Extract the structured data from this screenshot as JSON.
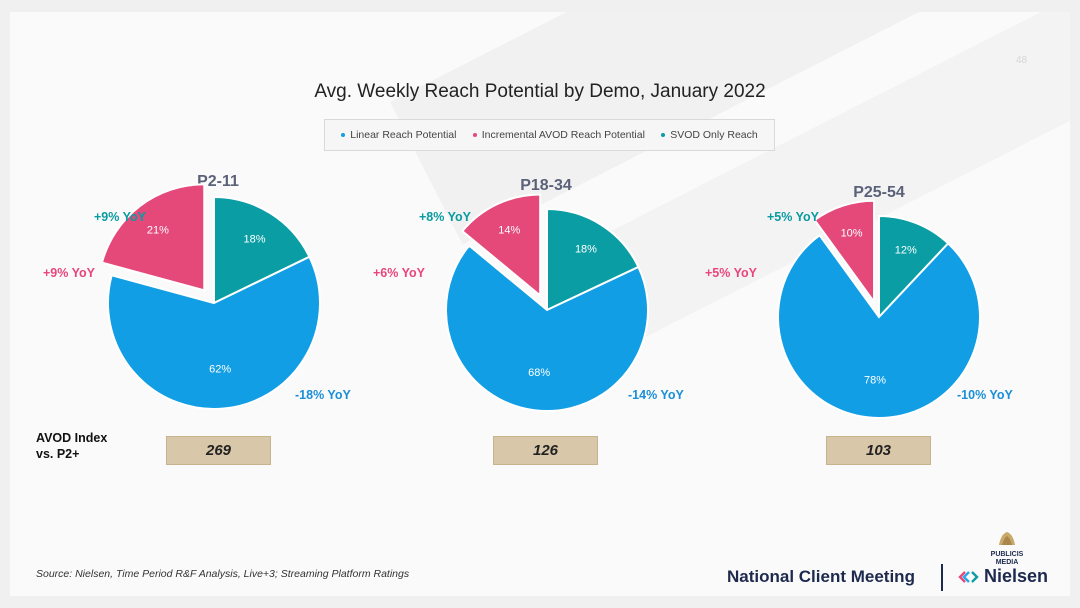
{
  "page_number": "48",
  "title": "Avg. Weekly Reach Potential by Demo, January 2022",
  "legend": [
    {
      "label": "Linear Reach Potential",
      "color": "#119ee4"
    },
    {
      "label": "Incremental AVOD Reach Potential",
      "color": "#e4497a"
    },
    {
      "label": "SVOD Only Reach",
      "color": "#0a9ea4"
    }
  ],
  "chart_data": [
    {
      "type": "pie",
      "title": "P2-11",
      "slices": [
        {
          "name": "SVOD Only Reach",
          "value": 18,
          "label": "18%",
          "yoy": "+9% YoY"
        },
        {
          "name": "Linear Reach Potential",
          "value": 62,
          "label": "62%",
          "yoy": "-18% YoY"
        },
        {
          "name": "Incremental AVOD Reach Potential",
          "value": 21,
          "label": "21%",
          "yoy": "+9% YoY",
          "exploded": true
        }
      ],
      "avod_index": "269"
    },
    {
      "type": "pie",
      "title": "P18-34",
      "slices": [
        {
          "name": "SVOD Only Reach",
          "value": 18,
          "label": "18%",
          "yoy": "+8% YoY"
        },
        {
          "name": "Linear Reach Potential",
          "value": 68,
          "label": "68%",
          "yoy": "-14% YoY"
        },
        {
          "name": "Incremental AVOD Reach Potential",
          "value": 14,
          "label": "14%",
          "yoy": "+6% YoY",
          "exploded": true
        }
      ],
      "avod_index": "126"
    },
    {
      "type": "pie",
      "title": "P25-54",
      "slices": [
        {
          "name": "SVOD Only Reach",
          "value": 12,
          "label": "12%",
          "yoy": "+5% YoY"
        },
        {
          "name": "Linear Reach Potential",
          "value": 78,
          "label": "78%",
          "yoy": "-10% YoY"
        },
        {
          "name": "Incremental AVOD Reach Potential",
          "value": 10,
          "label": "10%",
          "yoy": "+5% YoY",
          "exploded": true
        }
      ],
      "avod_index": "103"
    }
  ],
  "avod_index_label_line1": "AVOD Index",
  "avod_index_label_line2": "vs. P2+",
  "source": "Source: Nielsen, Time Period R&F Analysis, Live+3; Streaming Platform Ratings",
  "footer_title": "National Client Meeting",
  "nielsen_brand": "Nielsen",
  "publicis_line1": "PUBLICIS",
  "publicis_line2": "MEDIA"
}
